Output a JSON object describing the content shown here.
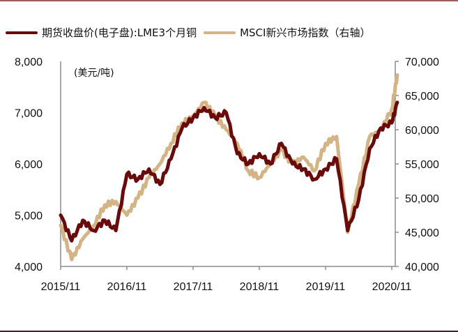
{
  "legend": {
    "series1_label": "期货收盘价(电子盘):LME3个月铜",
    "series2_label": "MSCI新兴市场指数（右轴）"
  },
  "unit_label": "(美元/吨)",
  "colors": {
    "series1": "#6b0a0a",
    "series2": "#d4b384",
    "axis": "#8c8c8c"
  },
  "axes": {
    "left_ticks": [
      "8,000",
      "7,000",
      "6,000",
      "5,000",
      "4,000"
    ],
    "right_ticks": [
      "70,000",
      "65,000",
      "60,000",
      "55,000",
      "50,000",
      "45,000",
      "40,000"
    ],
    "x_ticks": [
      "2015/11",
      "2016/11",
      "2017/11",
      "2018/11",
      "2019/11",
      "2020/11"
    ]
  },
  "chart_data": {
    "type": "line",
    "title": "",
    "xlabel": "",
    "ylabel": "(美元/吨)",
    "y2label": "MSCI新兴市场指数（右轴）",
    "ylim": [
      4000,
      8000
    ],
    "y2lim": [
      40000,
      70000
    ],
    "x_ticks": [
      "2015/11",
      "2016/11",
      "2017/11",
      "2018/11",
      "2019/11",
      "2020/11"
    ],
    "legend_position": "top",
    "grid": false,
    "x": [
      "2015-11",
      "2016-01",
      "2016-03",
      "2016-05",
      "2016-07",
      "2016-09",
      "2016-11",
      "2017-01",
      "2017-03",
      "2017-05",
      "2017-07",
      "2017-09",
      "2017-11",
      "2018-01",
      "2018-03",
      "2018-05",
      "2018-07",
      "2018-09",
      "2018-11",
      "2019-01",
      "2019-03",
      "2019-05",
      "2019-07",
      "2019-09",
      "2019-11",
      "2020-01",
      "2020-03",
      "2020-05",
      "2020-07",
      "2020-09",
      "2020-11",
      "2020-12"
    ],
    "series": [
      {
        "name": "期货收盘价(电子盘):LME3个月铜",
        "axis": "left",
        "values": [
          5000,
          4500,
          4900,
          4700,
          4900,
          4700,
          5800,
          5700,
          5900,
          5600,
          6100,
          6700,
          6900,
          7100,
          6900,
          7000,
          6200,
          6000,
          6200,
          6000,
          6400,
          6000,
          5900,
          5700,
          5900,
          6100,
          4700,
          5300,
          6300,
          6700,
          6800,
          7200
        ]
      },
      {
        "name": "MSCI新兴市场指数（右轴）",
        "axis": "right",
        "values": [
          46000,
          41000,
          44000,
          46000,
          49000,
          49500,
          47500,
          50000,
          53000,
          55000,
          58000,
          61000,
          62000,
          64000,
          62000,
          60000,
          58000,
          54000,
          53000,
          55000,
          57000,
          55000,
          56000,
          54000,
          58000,
          59000,
          45000,
          52000,
          59000,
          60000,
          63000,
          68000
        ]
      }
    ]
  }
}
